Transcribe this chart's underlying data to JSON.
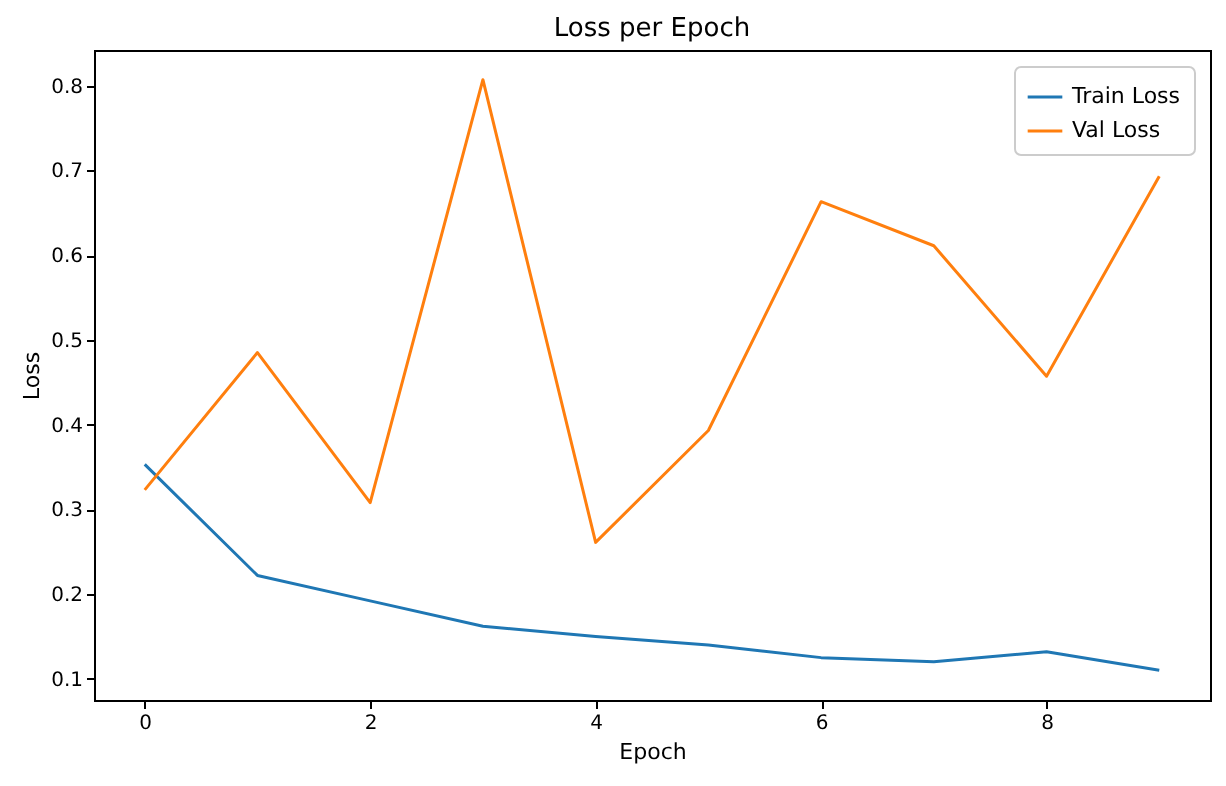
{
  "chart_data": {
    "type": "line",
    "title": "Loss per Epoch",
    "xlabel": "Epoch",
    "ylabel": "Loss",
    "x": [
      0,
      1,
      2,
      3,
      4,
      5,
      6,
      7,
      8,
      9
    ],
    "series": [
      {
        "name": "Train Loss",
        "color": "#1f77b4",
        "values": [
          0.353,
          0.222,
          0.192,
          0.162,
          0.15,
          0.14,
          0.125,
          0.12,
          0.132,
          0.11
        ]
      },
      {
        "name": "Val Loss",
        "color": "#ff7f0e",
        "values": [
          0.323,
          0.485,
          0.308,
          0.807,
          0.261,
          0.393,
          0.663,
          0.611,
          0.457,
          0.693
        ]
      }
    ],
    "xlim": [
      -0.45,
      9.45
    ],
    "ylim": [
      0.075,
      0.842
    ],
    "xticks": [
      0,
      2,
      4,
      6,
      8
    ],
    "yticks": [
      0.1,
      0.2,
      0.3,
      0.4,
      0.5,
      0.6,
      0.7,
      0.8
    ],
    "legend": "top right"
  }
}
